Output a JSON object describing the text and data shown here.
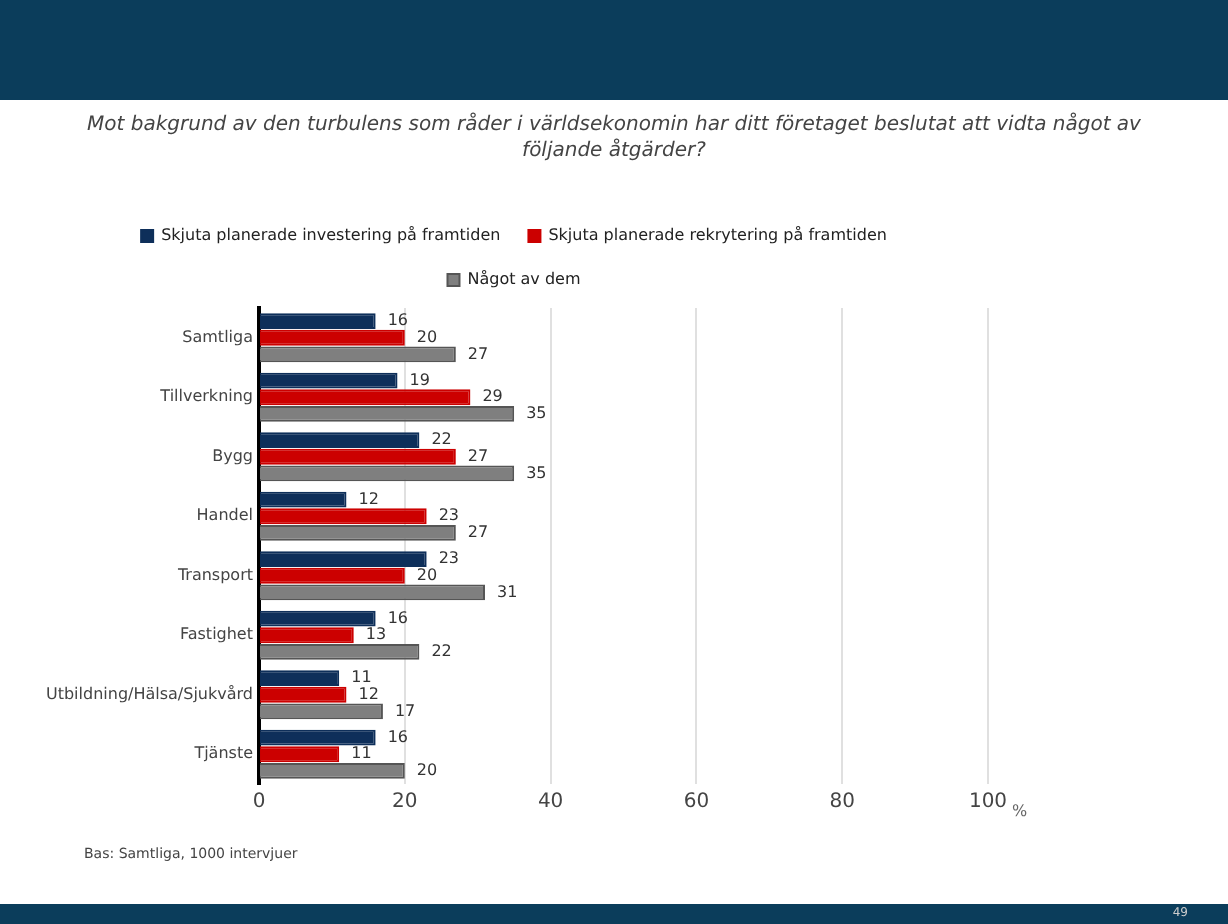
{
  "chart_data": {
    "type": "bar",
    "orientation": "horizontal",
    "title": "Mot bakgrund av den turbulens som råder i världsekonomin har ditt företaget beslutat att vidta något av följande åtgärder?",
    "categories": [
      "Samtliga",
      "Tillverkning",
      "Bygg",
      "Handel",
      "Transport",
      "Fastighet",
      "Utbildning/Hälsa/Sjukvård",
      "Tjänste"
    ],
    "series": [
      {
        "name": "Skjuta planerade investering på framtiden",
        "color": "#0e2f5a",
        "values": [
          16,
          19,
          22,
          12,
          23,
          16,
          11,
          16
        ]
      },
      {
        "name": "Skjuta planerade rekrytering på framtiden",
        "color": "#cc0000",
        "values": [
          20,
          29,
          27,
          23,
          20,
          13,
          12,
          11
        ]
      },
      {
        "name": "Något av dem",
        "color": "#7f7f7f",
        "values": [
          27,
          35,
          35,
          27,
          31,
          22,
          17,
          20
        ]
      }
    ],
    "xlim": [
      0,
      100
    ],
    "xticks": [
      0,
      20,
      40,
      60,
      80,
      100
    ],
    "xlabel": "%",
    "grid": "x",
    "legend": "top",
    "data_labels": true,
    "annotations": [
      "Bas: Samtliga, 1000 intervjuer",
      "49"
    ]
  }
}
